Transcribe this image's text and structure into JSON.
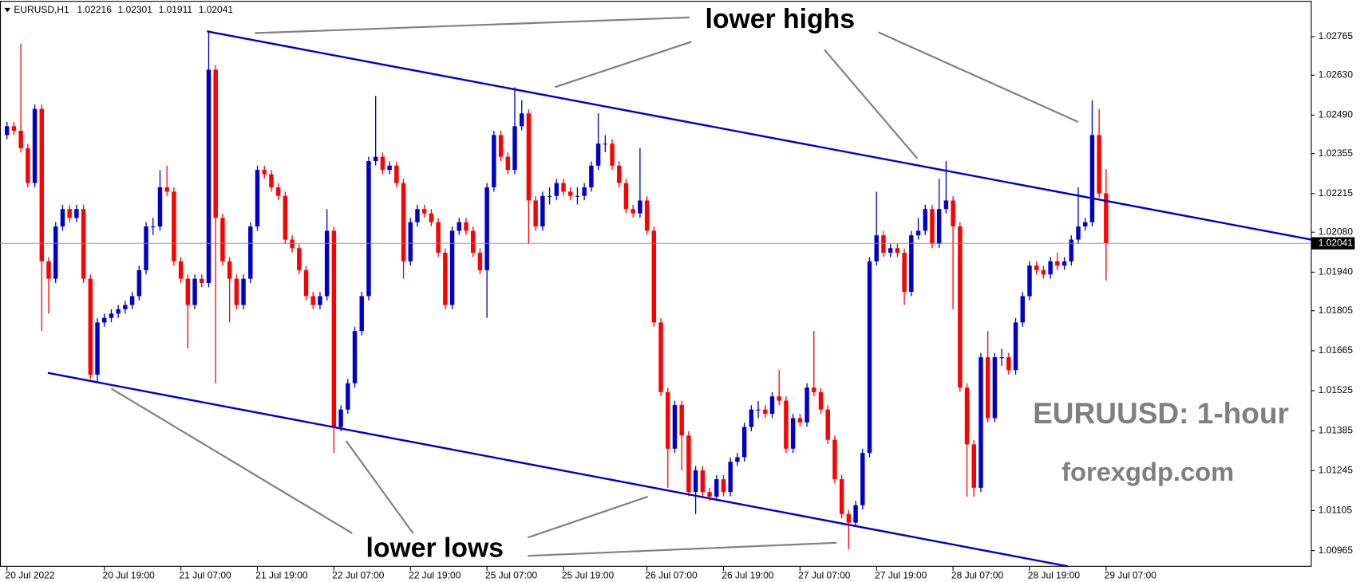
{
  "chart_data": {
    "type": "candlestick",
    "symbol": "EURUSD,H1",
    "up_color": "#0000cc",
    "down_color": "#ff0000",
    "annotations": [
      "lower highs",
      "lower lows",
      "EURUUSD: 1-hour",
      "forexgdp.com"
    ],
    "ylim": [
      1.0091,
      1.02893
    ],
    "yticks": [
      1.02765,
      {
        "value": 1.0263,
        "label": "1.02630"
      },
      {
        "value": 1.0249,
        "label": "1.02490"
      },
      1.02355,
      1.02215,
      {
        "value": 1.0208,
        "label": "1.02080"
      },
      {
        "value": 1.0194,
        "label": "1.01940"
      },
      1.01805,
      1.01665,
      1.01525,
      1.01385,
      1.01245,
      1.01105,
      1.00965
    ],
    "categories": [
      "20 Jul 2022",
      null,
      null,
      null,
      null,
      null,
      null,
      null,
      null,
      null,
      null,
      null,
      null,
      null,
      "20 Jul 19:00",
      null,
      null,
      null,
      null,
      null,
      null,
      null,
      null,
      null,
      null,
      "21 Jul 07:00",
      null,
      null,
      null,
      null,
      null,
      null,
      null,
      null,
      null,
      null,
      "21 Jul 19:00",
      null,
      null,
      null,
      null,
      null,
      null,
      null,
      null,
      null,
      null,
      "22 Jul 07:00",
      null,
      null,
      null,
      null,
      null,
      null,
      null,
      null,
      null,
      null,
      "22 Jul 19:00",
      null,
      null,
      null,
      null,
      null,
      null,
      null,
      null,
      null,
      null,
      "25 Jul 07:00",
      null,
      null,
      null,
      null,
      null,
      null,
      null,
      null,
      null,
      null,
      "25 Jul 19:00",
      null,
      null,
      null,
      null,
      null,
      null,
      null,
      null,
      null,
      null,
      null,
      "26 Jul 07:00",
      null,
      null,
      null,
      null,
      null,
      null,
      null,
      null,
      null,
      null,
      "26 Jul 19:00",
      null,
      null,
      null,
      null,
      null,
      null,
      null,
      null,
      null,
      null,
      "27 Jul 07:00",
      null,
      null,
      null,
      null,
      null,
      null,
      null,
      null,
      null,
      null,
      "27 Jul 19:00",
      null,
      null,
      null,
      null,
      null,
      null,
      null,
      null,
      null,
      null,
      "28 Jul 07:00",
      null,
      null,
      null,
      null,
      null,
      null,
      null,
      null,
      null,
      null,
      "28 Jul 19:00",
      null,
      null,
      null,
      null,
      null,
      null,
      null,
      null,
      null,
      null,
      "29 Jul 07:00"
    ],
    "open": [
      1.0242,
      1.02451,
      1.02435,
      1.02374,
      1.02252,
      1.02512,
      1.01978,
      1.01917,
      1.021,
      1.02161,
      1.0213,
      1.02161,
      1.01917,
      1.01581,
      1.01764,
      1.0178,
      1.01795,
      1.0181,
      1.01825,
      1.01856,
      1.01947,
      1.021,
      1.021,
      1.02237,
      1.02222,
      1.01978,
      1.01917,
      1.01825,
      1.01917,
      1.01902,
      1.02649,
      1.0213,
      1.01978,
      1.01917,
      1.01825,
      1.01917,
      1.021,
      1.02298,
      1.02283,
      1.02237,
      1.02207,
      1.02054,
      1.02024,
      1.01947,
      1.01856,
      1.01825,
      1.01856,
      1.02085,
      1.01398,
      1.01459,
      1.01551,
      1.01734,
      1.01856,
      1.02329,
      1.02344,
      1.02298,
      1.02313,
      1.02252,
      1.01978,
      1.02115,
      1.02161,
      1.02146,
      1.02115,
      1.02008,
      1.01825,
      1.02085,
      1.02115,
      1.02085,
      1.02008,
      1.01947,
      1.02237,
      1.0242,
      1.02344,
      1.02298,
      1.02451,
      1.02496,
      1.02191,
      1.021,
      1.02207,
      1.02207,
      1.02252,
      1.02222,
      1.02207,
      1.02207,
      1.02237,
      1.02313,
      1.0239,
      1.0239,
      1.02313,
      1.02252,
      1.02161,
      1.02146,
      1.02191,
      1.02085,
      1.01764,
      1.0152,
      1.01322,
      1.01475,
      1.01368,
      1.0117,
      1.01246,
      1.0117,
      1.01154,
      1.01215,
      1.0117,
      1.01276,
      1.01292,
      1.01398,
      1.01459,
      1.01459,
      1.01444,
      1.01505,
      1.0149,
      1.01322,
      1.01429,
      1.01414,
      1.01536,
      1.0152,
      1.01459,
      1.01353,
      1.01215,
      1.01093,
      1.01063,
      1.01124,
      1.01307,
      1.01978,
      1.02069,
      1.02008,
      1.02024,
      1.02008,
      1.01871,
      1.02069,
      1.02085,
      1.02161,
      1.02039,
      1.02161,
      1.02191,
      1.021,
      1.01536,
      1.01337,
      1.01185,
      1.01642,
      1.01429,
      1.01642,
      1.01642,
      1.01597,
      1.01764,
      1.01856,
      1.01963,
      1.01947,
      1.01932,
      1.01978,
      1.01963,
      1.01978,
      1.02054,
      1.021,
      1.02115,
      1.0242,
      1.02216
    ],
    "high": [
      1.02466,
      1.02466,
      1.0274,
      1.02389,
      1.02527,
      1.02527,
      1.01993,
      1.02115,
      1.02176,
      1.02176,
      1.02176,
      1.02176,
      1.01932,
      1.01779,
      1.01795,
      1.0181,
      1.01825,
      1.0184,
      1.01871,
      1.01962,
      1.02115,
      1.0213,
      1.02298,
      1.02313,
      1.02237,
      1.01993,
      1.01932,
      1.01932,
      1.01932,
      1.02786,
      1.02664,
      1.02145,
      1.01993,
      1.01932,
      1.01932,
      1.02115,
      1.02313,
      1.02313,
      1.02298,
      1.02252,
      1.02222,
      1.02069,
      1.02039,
      1.01962,
      1.01871,
      1.01871,
      1.02161,
      1.021,
      1.01474,
      1.01566,
      1.01749,
      1.01871,
      1.02344,
      1.02557,
      1.02359,
      1.02328,
      1.02328,
      1.02267,
      1.0213,
      1.02176,
      1.02176,
      1.02161,
      1.0213,
      1.02023,
      1.021,
      1.0213,
      1.0213,
      1.021,
      1.02023,
      1.02252,
      1.02435,
      1.02435,
      1.02359,
      1.02588,
      1.02542,
      1.02511,
      1.02206,
      1.02222,
      1.02237,
      1.02267,
      1.02267,
      1.02237,
      1.02237,
      1.02252,
      1.02328,
      1.02496,
      1.0242,
      1.02405,
      1.02328,
      1.02267,
      1.02176,
      1.02374,
      1.02206,
      1.021,
      1.01779,
      1.01535,
      1.0149,
      1.0149,
      1.01383,
      1.01261,
      1.01261,
      1.01185,
      1.0123,
      1.0123,
      1.01291,
      1.01307,
      1.01413,
      1.01474,
      1.01489,
      1.01474,
      1.0152,
      1.01597,
      1.01505,
      1.01444,
      1.01444,
      1.01551,
      1.01734,
      1.01535,
      1.01474,
      1.01368,
      1.0123,
      1.01108,
      1.01139,
      1.01322,
      1.01993,
      1.02222,
      1.02084,
      1.02039,
      1.02039,
      1.02023,
      1.02084,
      1.0213,
      1.02176,
      1.02176,
      1.02267,
      1.02329,
      1.02206,
      1.02115,
      1.01551,
      1.01352,
      1.01657,
      1.01734,
      1.01657,
      1.01672,
      1.01657,
      1.01779,
      1.01871,
      1.01978,
      1.01978,
      1.01962,
      1.01993,
      1.02008,
      1.01993,
      1.02069,
      1.02237,
      1.0213,
      1.02542,
      1.02511,
      1.02301
    ],
    "low": [
      1.02405,
      1.0242,
      1.02359,
      1.02237,
      1.02237,
      1.01734,
      1.01795,
      1.01902,
      1.02085,
      1.02115,
      1.02115,
      1.01902,
      1.01566,
      1.01551,
      1.01749,
      1.01765,
      1.0178,
      1.01795,
      1.0181,
      1.01841,
      1.01932,
      1.0207,
      1.02085,
      1.02207,
      1.01963,
      1.01902,
      1.01673,
      1.0181,
      1.01887,
      1.01887,
      1.01551,
      1.01963,
      1.01764,
      1.0181,
      1.0181,
      1.01902,
      1.02085,
      1.02268,
      1.02222,
      1.02192,
      1.02039,
      1.02009,
      1.01932,
      1.01841,
      1.0181,
      1.0181,
      1.01841,
      1.01307,
      1.01383,
      1.01444,
      1.01536,
      1.01719,
      1.01841,
      1.02314,
      1.02283,
      1.02283,
      1.02237,
      1.01917,
      1.01963,
      1.021,
      1.02131,
      1.021,
      1.01993,
      1.0181,
      1.0181,
      1.0207,
      1.0207,
      1.01993,
      1.01932,
      1.0178,
      1.02222,
      1.02329,
      1.02283,
      1.02283,
      1.02436,
      1.02039,
      1.02085,
      1.02085,
      1.02177,
      1.02192,
      1.02207,
      1.02192,
      1.02177,
      1.02192,
      1.02222,
      1.02298,
      1.0236,
      1.02298,
      1.02237,
      1.02146,
      1.02131,
      1.02131,
      1.0207,
      1.01749,
      1.01505,
      1.01185,
      1.01307,
      1.01246,
      1.01155,
      1.01093,
      1.01155,
      1.01139,
      1.01139,
      1.01155,
      1.01155,
      1.01261,
      1.01277,
      1.01383,
      1.01429,
      1.01429,
      1.01429,
      1.01475,
      1.01307,
      1.01307,
      1.01399,
      1.01399,
      1.01505,
      1.01444,
      1.01338,
      1.012,
      1.01078,
      1.0097,
      1.01048,
      1.01109,
      1.01292,
      1.01963,
      1.01993,
      1.01993,
      1.01993,
      1.01825,
      1.01856,
      1.02054,
      1.0207,
      1.02024,
      1.02024,
      1.02146,
      1.0181,
      1.01521,
      1.01154,
      1.01154,
      1.0117,
      1.01414,
      1.01414,
      1.01612,
      1.01582,
      1.01582,
      1.01749,
      1.01841,
      1.01932,
      1.01917,
      1.01917,
      1.01948,
      1.01948,
      1.01963,
      1.02039,
      1.02085,
      1.021,
      1.02201,
      1.01911
    ],
    "close": [
      1.02451,
      1.02435,
      1.02374,
      1.02252,
      1.02512,
      1.01978,
      1.01917,
      1.021,
      1.02161,
      1.0213,
      1.02161,
      1.01917,
      1.01581,
      1.01764,
      1.0178,
      1.01795,
      1.0181,
      1.01825,
      1.01856,
      1.01947,
      1.021,
      1.021,
      1.02237,
      1.02222,
      1.01978,
      1.01917,
      1.01825,
      1.01917,
      1.01902,
      1.02649,
      1.0213,
      1.01978,
      1.01917,
      1.01825,
      1.01917,
      1.021,
      1.02298,
      1.02283,
      1.02237,
      1.02207,
      1.02054,
      1.02024,
      1.01947,
      1.01856,
      1.01825,
      1.01856,
      1.02085,
      1.01398,
      1.01459,
      1.01551,
      1.01734,
      1.01856,
      1.02329,
      1.02344,
      1.02298,
      1.02313,
      1.02252,
      1.01978,
      1.02115,
      1.02161,
      1.02146,
      1.02115,
      1.02008,
      1.01825,
      1.02085,
      1.02115,
      1.02085,
      1.02008,
      1.01947,
      1.02237,
      1.0242,
      1.02344,
      1.02298,
      1.02451,
      1.02496,
      1.02191,
      1.021,
      1.02207,
      1.02207,
      1.02252,
      1.02222,
      1.02207,
      1.02207,
      1.02237,
      1.02313,
      1.0239,
      1.0239,
      1.02313,
      1.02252,
      1.02161,
      1.02146,
      1.02191,
      1.02085,
      1.01764,
      1.0152,
      1.01322,
      1.01475,
      1.01368,
      1.0117,
      1.01246,
      1.0117,
      1.01154,
      1.01215,
      1.0117,
      1.01276,
      1.01292,
      1.01398,
      1.01459,
      1.01459,
      1.01444,
      1.01505,
      1.0149,
      1.01322,
      1.01429,
      1.01414,
      1.01536,
      1.0152,
      1.01459,
      1.01353,
      1.01215,
      1.01093,
      1.01063,
      1.01124,
      1.01307,
      1.01978,
      1.02069,
      1.02008,
      1.02024,
      1.02008,
      1.01871,
      1.02069,
      1.02085,
      1.02161,
      1.02039,
      1.02161,
      1.02191,
      1.021,
      1.01536,
      1.01337,
      1.01185,
      1.01642,
      1.01429,
      1.01642,
      1.01642,
      1.01597,
      1.01764,
      1.01856,
      1.01963,
      1.01947,
      1.01932,
      1.01978,
      1.01963,
      1.01978,
      1.02054,
      1.021,
      1.02115,
      1.0242,
      1.02216,
      1.02041
    ]
  }
}
